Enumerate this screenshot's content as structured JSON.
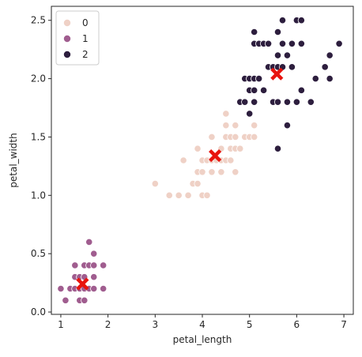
{
  "chart_data": {
    "type": "scatter",
    "title": "",
    "xlabel": "petal_length",
    "ylabel": "petal_width",
    "xlim": [
      0.8,
      7.2
    ],
    "ylim": [
      -0.02,
      2.62
    ],
    "xticks": [
      1,
      2,
      3,
      4,
      5,
      6,
      7
    ],
    "yticks": [
      0.0,
      0.5,
      1.0,
      1.5,
      2.0,
      2.5
    ],
    "ytick_labels": [
      "0.0",
      "0.5",
      "1.0",
      "1.5",
      "2.0",
      "2.5"
    ],
    "grid": false,
    "legend": {
      "placement": "top-left"
    },
    "series": [
      {
        "name": "0",
        "color": "#efd1c6",
        "points": [
          [
            3.0,
            1.1
          ],
          [
            3.3,
            1.0
          ],
          [
            3.5,
            1.0
          ],
          [
            3.6,
            1.3
          ],
          [
            3.7,
            1.0
          ],
          [
            3.8,
            1.1
          ],
          [
            3.9,
            1.1
          ],
          [
            3.9,
            1.2
          ],
          [
            3.9,
            1.4
          ],
          [
            4.0,
            1.0
          ],
          [
            4.0,
            1.2
          ],
          [
            4.0,
            1.3
          ],
          [
            4.1,
            1.0
          ],
          [
            4.1,
            1.3
          ],
          [
            4.2,
            1.2
          ],
          [
            4.2,
            1.3
          ],
          [
            4.2,
            1.5
          ],
          [
            4.3,
            1.3
          ],
          [
            4.4,
            1.2
          ],
          [
            4.4,
            1.3
          ],
          [
            4.4,
            1.4
          ],
          [
            4.5,
            1.3
          ],
          [
            4.5,
            1.5
          ],
          [
            4.5,
            1.6
          ],
          [
            4.5,
            1.7
          ],
          [
            4.6,
            1.3
          ],
          [
            4.6,
            1.4
          ],
          [
            4.6,
            1.5
          ],
          [
            4.7,
            1.2
          ],
          [
            4.7,
            1.4
          ],
          [
            4.7,
            1.5
          ],
          [
            4.7,
            1.6
          ],
          [
            4.8,
            1.4
          ],
          [
            4.8,
            1.8
          ],
          [
            4.9,
            1.5
          ],
          [
            5.0,
            1.5
          ],
          [
            5.0,
            1.7
          ],
          [
            5.1,
            1.6
          ],
          [
            5.1,
            1.5
          ]
        ]
      },
      {
        "name": "1",
        "color": "#a05d8f",
        "points": [
          [
            1.0,
            0.2
          ],
          [
            1.1,
            0.1
          ],
          [
            1.2,
            0.2
          ],
          [
            1.3,
            0.2
          ],
          [
            1.3,
            0.3
          ],
          [
            1.3,
            0.4
          ],
          [
            1.4,
            0.1
          ],
          [
            1.4,
            0.2
          ],
          [
            1.4,
            0.3
          ],
          [
            1.5,
            0.1
          ],
          [
            1.5,
            0.2
          ],
          [
            1.5,
            0.3
          ],
          [
            1.5,
            0.4
          ],
          [
            1.6,
            0.2
          ],
          [
            1.6,
            0.4
          ],
          [
            1.6,
            0.6
          ],
          [
            1.7,
            0.2
          ],
          [
            1.7,
            0.3
          ],
          [
            1.7,
            0.4
          ],
          [
            1.7,
            0.5
          ],
          [
            1.9,
            0.2
          ],
          [
            1.9,
            0.4
          ]
        ]
      },
      {
        "name": "2",
        "color": "#2d1e3e",
        "points": [
          [
            4.8,
            1.8
          ],
          [
            4.9,
            1.8
          ],
          [
            4.9,
            2.0
          ],
          [
            5.0,
            1.9
          ],
          [
            5.0,
            2.0
          ],
          [
            5.0,
            1.7
          ],
          [
            5.1,
            1.8
          ],
          [
            5.1,
            1.9
          ],
          [
            5.1,
            2.0
          ],
          [
            5.1,
            2.3
          ],
          [
            5.1,
            2.4
          ],
          [
            5.2,
            2.0
          ],
          [
            5.2,
            2.3
          ],
          [
            5.3,
            1.9
          ],
          [
            5.3,
            2.3
          ],
          [
            5.4,
            2.1
          ],
          [
            5.4,
            2.3
          ],
          [
            5.5,
            1.8
          ],
          [
            5.5,
            2.1
          ],
          [
            5.6,
            1.4
          ],
          [
            5.6,
            1.8
          ],
          [
            5.6,
            2.1
          ],
          [
            5.6,
            2.2
          ],
          [
            5.6,
            2.4
          ],
          [
            5.7,
            2.1
          ],
          [
            5.7,
            2.3
          ],
          [
            5.7,
            2.5
          ],
          [
            5.8,
            1.6
          ],
          [
            5.8,
            1.8
          ],
          [
            5.8,
            2.2
          ],
          [
            5.9,
            2.1
          ],
          [
            5.9,
            2.3
          ],
          [
            6.0,
            1.8
          ],
          [
            6.0,
            2.5
          ],
          [
            6.1,
            1.9
          ],
          [
            6.1,
            2.3
          ],
          [
            6.1,
            2.5
          ],
          [
            6.3,
            1.8
          ],
          [
            6.4,
            2.0
          ],
          [
            6.6,
            2.1
          ],
          [
            6.7,
            2.0
          ],
          [
            6.7,
            2.2
          ],
          [
            6.9,
            2.3
          ]
        ]
      }
    ],
    "centroids": {
      "color": "#e8140e",
      "marker": "X",
      "points": [
        [
          1.46,
          0.24
        ],
        [
          4.27,
          1.34
        ],
        [
          5.58,
          2.04
        ]
      ]
    }
  }
}
